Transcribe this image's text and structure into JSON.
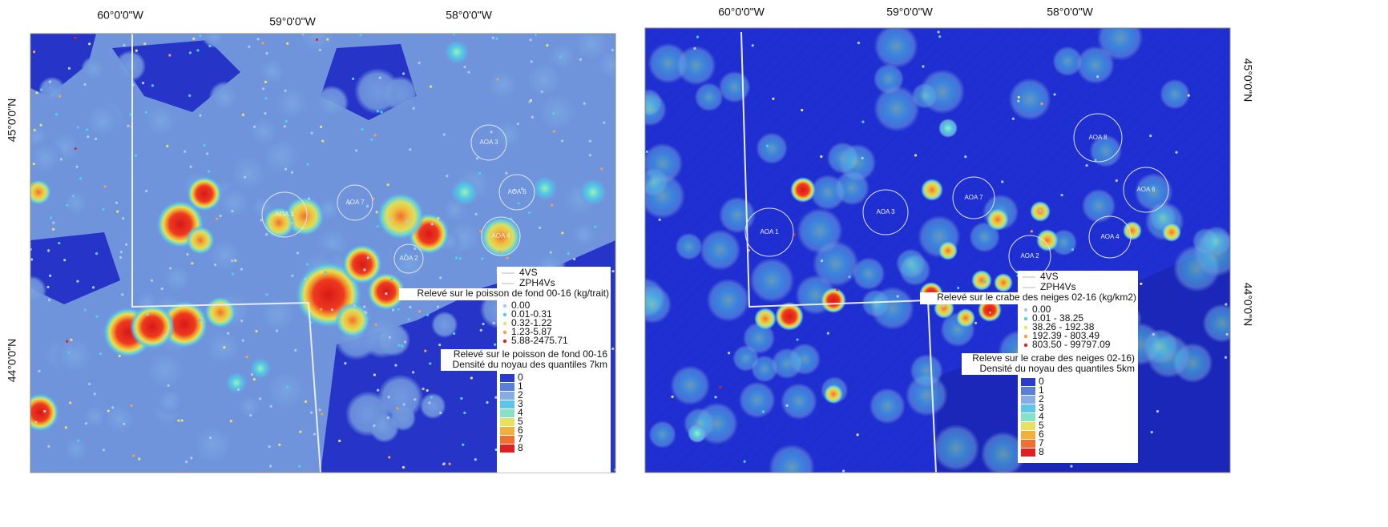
{
  "panels": [
    {
      "longitude_labels": [
        "60°0'0\"W",
        "59°0'0\"W",
        "58°0'0\"W"
      ],
      "latitude_labels": [
        "45°0'0\"N",
        "44°0'0\"N"
      ],
      "areas": [
        "AOA 3",
        "AOA 7",
        "AOA 6",
        "AOA 1",
        "AOA 4",
        "AOA 2"
      ],
      "legend": {
        "layers": [
          "4VS",
          "ZPH4Vs"
        ],
        "survey_title": "Relevé sur le poisson de fond 00-16 (kg/trait)",
        "classes": [
          "0.00",
          "0.01-0.31",
          "0.32-1.22",
          "1.23-5.87",
          "5.88-2475.71"
        ],
        "density_title": [
          "Relevé sur le poisson de fond 00-16",
          "Densité du noyau des quantiles 7km"
        ],
        "density_classes": [
          "0",
          "1",
          "2",
          "3",
          "4",
          "5",
          "6",
          "7",
          "8"
        ]
      }
    },
    {
      "longitude_labels": [
        "60°0'0\"W",
        "59°0'0\"W",
        "58°0'0\"W"
      ],
      "latitude_labels": [
        "45°0'0\"N",
        "44°0'0\"N"
      ],
      "areas": [
        "AOA 1",
        "AOA 3",
        "AOA 7",
        "AOA 2",
        "AOA 4",
        "AOA 6",
        "AOA 8"
      ],
      "legend": {
        "layers": [
          "4VS",
          "ZPH4Vs"
        ],
        "survey_title": "Relevé sur le crabe des neiges 02-16 (kg/km2)",
        "classes": [
          "0.00",
          "0.01 - 38.25",
          "38.26 - 192.38",
          "192.39 - 803.49",
          "803.50 - 99797.09"
        ],
        "density_title": [
          "Releve sur le crabe des neiges 02-16)",
          "Densité du noyau des quantiles 5km"
        ],
        "density_classes": [
          "0",
          "1",
          "2",
          "3",
          "4",
          "5",
          "6",
          "7",
          "8"
        ]
      }
    }
  ]
}
